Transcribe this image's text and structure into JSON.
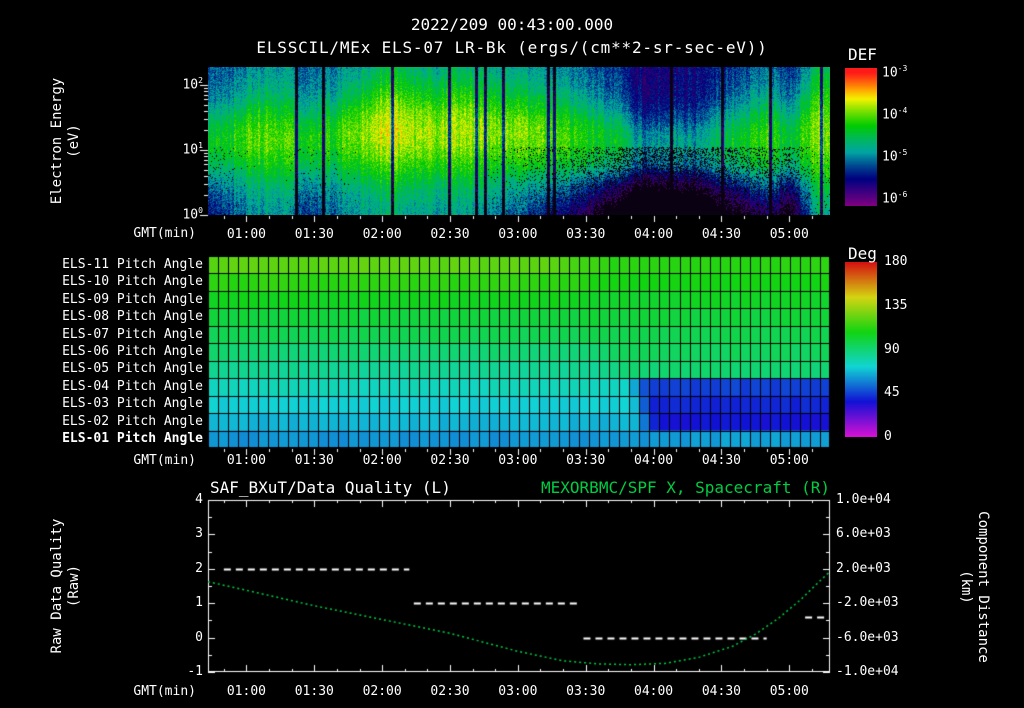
{
  "header": {
    "title": "2022/209 00:43:00.000",
    "subtitle": "ELSSCIL/MEx ELS-07 LR-Bk  (ergs/(cm**2-sr-sec-eV))"
  },
  "colors": {
    "background": "#000000",
    "text": "#ffffff",
    "accent_green": "#00cc44"
  },
  "time_axis": {
    "label": "GMT(min)",
    "start_min": 43,
    "end_min": 318,
    "tick_labels": [
      "01:00",
      "01:30",
      "02:00",
      "02:30",
      "03:00",
      "03:30",
      "04:00",
      "04:30",
      "05:00"
    ],
    "tick_minutes": [
      60,
      90,
      120,
      150,
      180,
      210,
      240,
      270,
      300
    ],
    "minor_step_min": 10
  },
  "chart_data": [
    {
      "type": "heatmap",
      "name": "electron-energy-spectrogram",
      "title": "ELSSCIL/MEx ELS-07 LR-Bk",
      "units_label": "(ergs/(cm**2-sr-sec-eV))",
      "ylabel_lines": [
        "Electron Energy",
        "(eV)"
      ],
      "y_scale": "log",
      "y_range_eV": [
        1,
        190
      ],
      "y_tick_exponents": [
        0,
        1,
        2
      ],
      "colorbar": {
        "label": "DEF",
        "tick_exponents": [
          -3,
          -4,
          -5,
          -6
        ],
        "log10_range": [
          -2.9,
          -6.19
        ]
      },
      "flux_log10_range": [
        -6.2,
        -3.0
      ],
      "columns": [
        {
          "t": 43,
          "peak": -4.35,
          "center_eV": 13,
          "width_dec": 0.42,
          "bg": -5.2,
          "dropout": 0.15
        },
        {
          "t": 54,
          "peak": -4.25,
          "center_eV": 14,
          "width_dec": 0.44,
          "bg": -5.15,
          "dropout": 0.05
        },
        {
          "t": 65,
          "peak": -4.0,
          "center_eV": 15,
          "width_dec": 0.5,
          "bg": -5.0,
          "dropout": 0.0
        },
        {
          "t": 76,
          "peak": -4.1,
          "center_eV": 14,
          "width_dec": 0.52,
          "bg": -5.0,
          "dropout": 0.0
        },
        {
          "t": 87,
          "peak": -4.35,
          "center_eV": 13,
          "width_dec": 0.42,
          "bg": -5.2,
          "dropout": 0.1
        },
        {
          "t": 98,
          "peak": -4.25,
          "center_eV": 15,
          "width_dec": 0.46,
          "bg": -5.1,
          "dropout": 0.05
        },
        {
          "t": 109,
          "peak": -4.0,
          "center_eV": 17,
          "width_dec": 0.52,
          "bg": -5.0,
          "dropout": 0.0
        },
        {
          "t": 120,
          "peak": -3.7,
          "center_eV": 20,
          "width_dec": 0.6,
          "bg": -4.9,
          "dropout": 0.0
        },
        {
          "t": 131,
          "peak": -3.75,
          "center_eV": 20,
          "width_dec": 0.6,
          "bg": -4.9,
          "dropout": 0.0
        },
        {
          "t": 142,
          "peak": -3.9,
          "center_eV": 18,
          "width_dec": 0.55,
          "bg": -5.0,
          "dropout": 0.0
        },
        {
          "t": 153,
          "peak": -3.8,
          "center_eV": 20,
          "width_dec": 0.6,
          "bg": -4.95,
          "dropout": 0.0
        },
        {
          "t": 164,
          "peak": -3.85,
          "center_eV": 19,
          "width_dec": 0.58,
          "bg": -5.0,
          "dropout": 0.0
        },
        {
          "t": 175,
          "peak": -3.9,
          "center_eV": 18,
          "width_dec": 0.55,
          "bg": -5.0,
          "dropout": 0.1
        },
        {
          "t": 186,
          "peak": -4.0,
          "center_eV": 17,
          "width_dec": 0.5,
          "bg": -5.05,
          "dropout": 0.2
        },
        {
          "t": 197,
          "peak": -4.1,
          "center_eV": 16,
          "width_dec": 0.5,
          "bg": -5.1,
          "dropout": 0.3
        },
        {
          "t": 208,
          "peak": -4.2,
          "center_eV": 15,
          "width_dec": 0.46,
          "bg": -5.15,
          "dropout": 0.4
        },
        {
          "t": 219,
          "peak": -4.4,
          "center_eV": 14,
          "width_dec": 0.42,
          "bg": -5.3,
          "dropout": 0.6
        },
        {
          "t": 228,
          "peak": -4.6,
          "center_eV": 13,
          "width_dec": 0.38,
          "bg": -5.5,
          "dropout": 0.8
        },
        {
          "t": 237,
          "peak": -5.0,
          "center_eV": 12,
          "width_dec": 0.32,
          "bg": -5.7,
          "dropout": 0.9
        },
        {
          "t": 248,
          "peak": -4.8,
          "center_eV": 12,
          "width_dec": 0.35,
          "bg": -5.6,
          "dropout": 0.85
        },
        {
          "t": 259,
          "peak": -4.9,
          "center_eV": 12,
          "width_dec": 0.33,
          "bg": -5.6,
          "dropout": 0.8
        },
        {
          "t": 270,
          "peak": -4.55,
          "center_eV": 13,
          "width_dec": 0.4,
          "bg": -5.4,
          "dropout": 0.6
        },
        {
          "t": 281,
          "peak": -4.35,
          "center_eV": 14,
          "width_dec": 0.46,
          "bg": -5.3,
          "dropout": 0.5
        },
        {
          "t": 292,
          "peak": -4.2,
          "center_eV": 15,
          "width_dec": 0.5,
          "bg": -5.2,
          "dropout": 0.4
        },
        {
          "t": 300,
          "peak": -4.5,
          "center_eV": 14,
          "width_dec": 0.42,
          "bg": -5.4,
          "dropout": 0.55
        },
        {
          "t": 308,
          "peak": -4.1,
          "center_eV": 16,
          "width_dec": 0.55,
          "bg": -5.1,
          "dropout": 0.2
        },
        {
          "t": 314,
          "peak": -3.9,
          "center_eV": 18,
          "width_dec": 0.8,
          "bg": -4.9,
          "dropout": 0.0
        },
        {
          "t": 318,
          "peak": -4.05,
          "center_eV": 16,
          "width_dec": 0.7,
          "bg": -5.0,
          "dropout": 0.1
        }
      ]
    },
    {
      "type": "heatmap",
      "name": "pitch-angle-panel",
      "cell_count_x": 62,
      "colorbar": {
        "label": "Deg",
        "ticks": [
          180,
          135,
          90,
          45,
          0
        ],
        "range_deg": [
          0,
          180
        ]
      },
      "rows": [
        {
          "label": "ELS-11 Pitch Angle",
          "left_deg": 122,
          "right_deg": 112,
          "trans_min": 210,
          "trans_width_min": 35
        },
        {
          "label": "ELS-10 Pitch Angle",
          "left_deg": 113,
          "right_deg": 108,
          "trans_min": 210,
          "trans_width_min": 35
        },
        {
          "label": "ELS-09 Pitch Angle",
          "left_deg": 106,
          "right_deg": 104,
          "trans_min": 210,
          "trans_width_min": 35
        },
        {
          "label": "ELS-08 Pitch Angle",
          "left_deg": 100,
          "right_deg": 100,
          "trans_min": 212,
          "trans_width_min": 30
        },
        {
          "label": "ELS-07 Pitch Angle",
          "left_deg": 96,
          "right_deg": 97,
          "trans_min": 214,
          "trans_width_min": 25
        },
        {
          "label": "ELS-06 Pitch Angle",
          "left_deg": 90,
          "right_deg": 94,
          "trans_min": 218,
          "trans_width_min": 22
        },
        {
          "label": "ELS-05 Pitch Angle",
          "left_deg": 84,
          "right_deg": 90,
          "trans_min": 222,
          "trans_width_min": 18
        },
        {
          "label": "ELS-04 Pitch Angle",
          "left_deg": 77,
          "right_deg": 45,
          "trans_min": 232,
          "trans_width_min": 14
        },
        {
          "label": "ELS-03 Pitch Angle",
          "left_deg": 71,
          "right_deg": 40,
          "trans_min": 235,
          "trans_width_min": 11
        },
        {
          "label": "ELS-02 Pitch Angle",
          "left_deg": 66,
          "right_deg": 36,
          "trans_min": 237,
          "trans_width_min": 10
        },
        {
          "label": "ELS-01 Pitch Angle",
          "bold": true,
          "left_deg": 60,
          "right_deg": 62,
          "trans_min": 250,
          "trans_width_min": 30
        }
      ]
    },
    {
      "type": "line",
      "name": "quality-and-distance",
      "title_left": "SAF_BXuT/Data Quality (L)",
      "title_right": "MEXORBMC/SPF X, Spacecraft (R)",
      "title_right_color": "#00cc44",
      "ylabel_left_lines": [
        "Raw Data Quality",
        "(Raw)"
      ],
      "ylabel_right_lines": [
        "Component Distance",
        "(km)"
      ],
      "ylim_left": [
        -1,
        4
      ],
      "yticks_left": [
        4,
        3,
        2,
        1,
        0,
        -1
      ],
      "ylim_right": [
        -10000,
        10000
      ],
      "yticks_right_labels": [
        "1.0e+04",
        "6.0e+03",
        "2.0e+03",
        "-2.0e+03",
        "-6.0e+03",
        "-1.0e+04"
      ],
      "series": [
        {
          "name": "SAF_BXuT/Data Quality",
          "axis": "left",
          "style": "dashed",
          "color": "#ffffff",
          "segments": [
            {
              "t0": 50,
              "t1": 132,
              "value": 2
            },
            {
              "t0": 134,
              "t1": 207,
              "value": 1
            },
            {
              "t0": 209,
              "t1": 290,
              "value": 0
            },
            {
              "t0": 307,
              "t1": 316,
              "value": 0.6
            }
          ]
        },
        {
          "name": "MEXORBMC/SPF X Spacecraft",
          "axis": "right",
          "style": "dotted",
          "color": "#00cc44",
          "points_t": [
            43,
            60,
            90,
            120,
            150,
            180,
            200,
            215,
            230,
            245,
            260,
            275,
            285,
            295,
            305,
            312,
            318
          ],
          "points_km": [
            500,
            -500,
            -2300,
            -3900,
            -5500,
            -7600,
            -8700,
            -9050,
            -9150,
            -9000,
            -8300,
            -7000,
            -5600,
            -3800,
            -1600,
            200,
            1700
          ]
        }
      ]
    }
  ]
}
